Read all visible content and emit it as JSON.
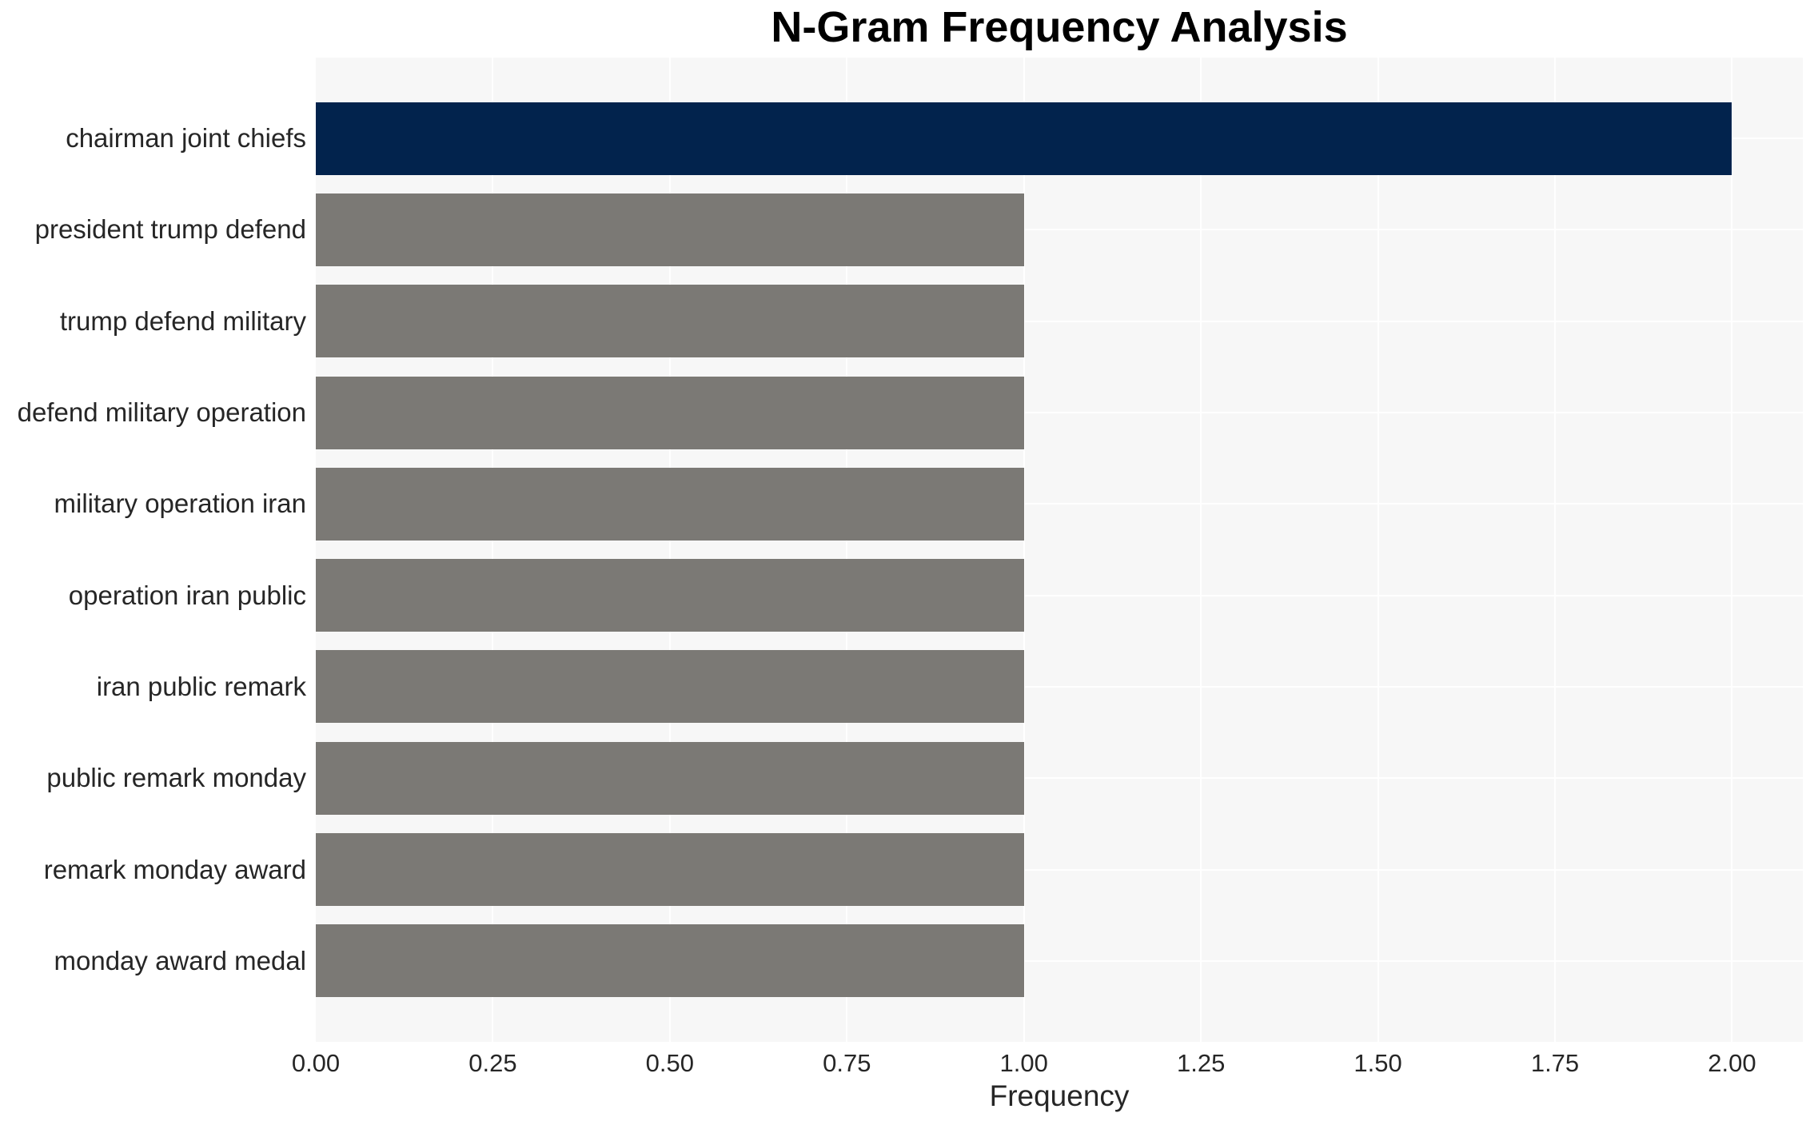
{
  "chart_data": {
    "type": "bar",
    "orientation": "horizontal",
    "title": "N-Gram Frequency Analysis",
    "xlabel": "Frequency",
    "ylabel": "",
    "categories": [
      "chairman joint chiefs",
      "president trump defend",
      "trump defend military",
      "defend military operation",
      "military operation iran",
      "operation iran public",
      "iran public remark",
      "public remark monday",
      "remark monday award",
      "monday award medal"
    ],
    "values": [
      2,
      1,
      1,
      1,
      1,
      1,
      1,
      1,
      1,
      1
    ],
    "bar_colors": [
      "#02234d",
      "#7b7975",
      "#7b7975",
      "#7b7975",
      "#7b7975",
      "#7b7975",
      "#7b7975",
      "#7b7975",
      "#7b7975",
      "#7b7975"
    ],
    "xlim": [
      0,
      2.1
    ],
    "xticks": [
      0.0,
      0.25,
      0.5,
      0.75,
      1.0,
      1.25,
      1.5,
      1.75,
      2.0
    ],
    "xtick_labels": [
      "0.00",
      "0.25",
      "0.50",
      "0.75",
      "1.00",
      "1.25",
      "1.50",
      "1.75",
      "2.00"
    ],
    "grid": true,
    "legend": false,
    "colors": {
      "plot_background": "#f7f7f7",
      "grid_line": "#ffffff",
      "tick_text": "#262626",
      "label_text": "#262626",
      "title_text": "#000000"
    }
  }
}
